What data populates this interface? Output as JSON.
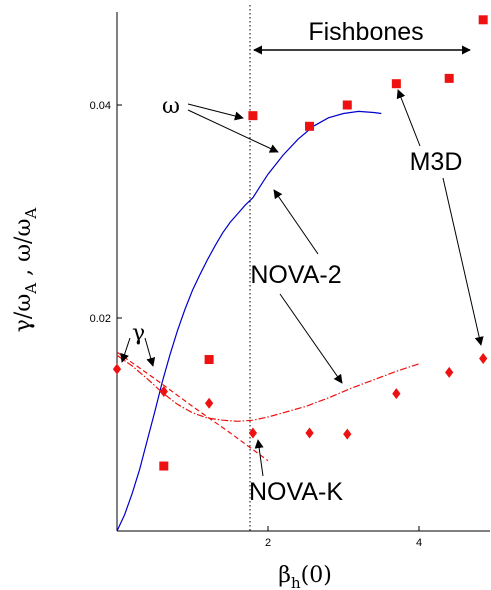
{
  "chart_data": {
    "type": "scatter",
    "title": "",
    "xlabel": "β_h(0)",
    "ylabel": "γ/ω_A , ω/ω_A",
    "xlim": [
      0,
      4.9
    ],
    "ylim": [
      0,
      0.049
    ],
    "x_ticks": [
      {
        "value": 2,
        "label": "2"
      },
      {
        "value": 4,
        "label": "4"
      }
    ],
    "y_ticks": [
      {
        "value": 0.02,
        "label": "0.02"
      },
      {
        "value": 0.04,
        "label": "0.04"
      }
    ],
    "grid": false,
    "vertical_reference_line": {
      "x": 1.75,
      "style": "dotted"
    },
    "series": [
      {
        "name": "NOVA-2",
        "quantity": "ω",
        "kind": "line",
        "color": "#0000cc",
        "points": [
          [
            0.0,
            0.0
          ],
          [
            0.1,
            0.0015
          ],
          [
            0.2,
            0.0035
          ],
          [
            0.3,
            0.0058
          ],
          [
            0.4,
            0.0085
          ],
          [
            0.5,
            0.0112
          ],
          [
            0.6,
            0.014
          ],
          [
            0.7,
            0.0165
          ],
          [
            0.8,
            0.0188
          ],
          [
            0.9,
            0.0208
          ],
          [
            1.0,
            0.0226
          ],
          [
            1.1,
            0.0241
          ],
          [
            1.2,
            0.0255
          ],
          [
            1.3,
            0.0268
          ],
          [
            1.4,
            0.028
          ],
          [
            1.5,
            0.029
          ],
          [
            1.6,
            0.0298
          ],
          [
            1.7,
            0.0306
          ],
          [
            1.8,
            0.0313
          ],
          [
            1.9,
            0.0324
          ],
          [
            2.0,
            0.0335
          ],
          [
            2.2,
            0.0353
          ],
          [
            2.4,
            0.0368
          ],
          [
            2.6,
            0.038
          ],
          [
            2.8,
            0.0388
          ],
          [
            3.0,
            0.0392
          ],
          [
            3.2,
            0.0394
          ],
          [
            3.4,
            0.0393
          ],
          [
            3.5,
            0.0392
          ]
        ]
      },
      {
        "name": "NOVA-2",
        "quantity": "γ",
        "kind": "line",
        "color": "#ee1111",
        "points": [
          [
            0.0,
            0.0165
          ],
          [
            0.2,
            0.0155
          ],
          [
            0.4,
            0.0143
          ],
          [
            0.6,
            0.013
          ],
          [
            0.8,
            0.0119
          ],
          [
            1.0,
            0.0111
          ],
          [
            1.2,
            0.0106
          ],
          [
            1.4,
            0.0104
          ],
          [
            1.6,
            0.0103
          ],
          [
            1.8,
            0.0104
          ],
          [
            2.0,
            0.0107
          ],
          [
            2.2,
            0.0111
          ],
          [
            2.5,
            0.0117
          ],
          [
            2.8,
            0.0125
          ],
          [
            3.1,
            0.0134
          ],
          [
            3.4,
            0.0142
          ],
          [
            3.7,
            0.015
          ],
          [
            4.0,
            0.0157
          ]
        ]
      },
      {
        "name": "NOVA-K",
        "quantity": "γ",
        "kind": "line",
        "color": "#ee1111",
        "points": [
          [
            0.0,
            0.0168
          ],
          [
            0.5,
            0.0143
          ],
          [
            1.0,
            0.0117
          ],
          [
            1.5,
            0.0092
          ],
          [
            2.0,
            0.0066
          ]
        ]
      },
      {
        "name": "M3D",
        "quantity": "ω",
        "kind": "scatter",
        "marker": "square",
        "color": "#ee1111",
        "points": [
          [
            0.62,
            0.0061
          ],
          [
            1.22,
            0.0161
          ],
          [
            1.8,
            0.039
          ],
          [
            2.55,
            0.038
          ],
          [
            3.05,
            0.04
          ],
          [
            3.7,
            0.042
          ],
          [
            4.4,
            0.0425
          ],
          [
            4.85,
            0.048
          ]
        ]
      },
      {
        "name": "M3D",
        "quantity": "γ",
        "kind": "scatter",
        "marker": "diamond",
        "color": "#ee1111",
        "points": [
          [
            0.0,
            0.0152
          ],
          [
            0.62,
            0.0131
          ],
          [
            1.22,
            0.012
          ],
          [
            1.8,
            0.0092
          ],
          [
            2.55,
            0.0092
          ],
          [
            3.05,
            0.0091
          ],
          [
            3.7,
            0.0129
          ],
          [
            4.4,
            0.0149
          ],
          [
            4.85,
            0.0162
          ]
        ]
      }
    ],
    "annotations": {
      "fishbones": "Fishbones",
      "omega": "ω",
      "gamma": "γ",
      "nova2": "NOVA-2",
      "m3d": "M3D",
      "novak": "NOVA-K"
    }
  }
}
